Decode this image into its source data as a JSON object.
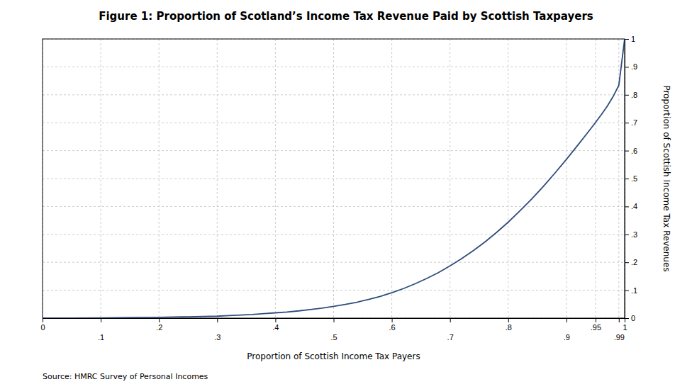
{
  "chart_data": {
    "type": "line",
    "title": "Figure 1: Proportion of Scotland’s Income Tax Revenue Paid by Scottish Taxpayers",
    "x_label": "Proportion of Scottish Income Tax Payers",
    "y_label": "Proportion of Scottish Income Tax Revenues",
    "source": "Source: HMRC Survey of Personal Incomes",
    "x": [
      0.0,
      0.05,
      0.1,
      0.15,
      0.2,
      0.25,
      0.3,
      0.32,
      0.34,
      0.36,
      0.38,
      0.4,
      0.42,
      0.44,
      0.46,
      0.48,
      0.5,
      0.52,
      0.54,
      0.56,
      0.58,
      0.6,
      0.62,
      0.64,
      0.66,
      0.68,
      0.7,
      0.72,
      0.74,
      0.76,
      0.78,
      0.8,
      0.82,
      0.84,
      0.86,
      0.88,
      0.9,
      0.92,
      0.94,
      0.95,
      0.96,
      0.97,
      0.98,
      0.99,
      1.0
    ],
    "values": [
      0.0,
      0.0005,
      0.001,
      0.002,
      0.003,
      0.005,
      0.007,
      0.009,
      0.011,
      0.013,
      0.016,
      0.019,
      0.022,
      0.026,
      0.031,
      0.036,
      0.042,
      0.049,
      0.057,
      0.067,
      0.078,
      0.091,
      0.106,
      0.123,
      0.142,
      0.163,
      0.187,
      0.213,
      0.242,
      0.273,
      0.307,
      0.344,
      0.384,
      0.426,
      0.471,
      0.519,
      0.569,
      0.621,
      0.674,
      0.701,
      0.729,
      0.759,
      0.793,
      0.834,
      1.0
    ],
    "color": "#2e4d7b",
    "xlim": [
      0,
      1.0
    ],
    "xticks": [
      0,
      {
        "value": 0.1,
        "label": ".1"
      },
      {
        "value": 0.2,
        "label": ".2"
      },
      {
        "value": 0.3,
        "label": ".3"
      },
      {
        "value": 0.4,
        "label": ".4"
      },
      {
        "value": 0.5,
        "label": ".5"
      },
      {
        "value": 0.6,
        "label": ".6"
      },
      {
        "value": 0.7,
        "label": ".7"
      },
      {
        "value": 0.8,
        "label": ".8"
      },
      {
        "value": 0.9,
        "label": ".9"
      },
      {
        "value": 0.95,
        "label": ".95"
      },
      {
        "value": 0.99,
        "label": ".99"
      },
      1
    ],
    "ylim": [
      0,
      1.0
    ],
    "yticks": [
      0,
      {
        "value": 0.1,
        "label": ".1"
      },
      {
        "value": 0.2,
        "label": ".2"
      },
      {
        "value": 0.3,
        "label": ".3"
      },
      {
        "value": 0.4,
        "label": ".4"
      },
      {
        "value": 0.5,
        "label": ".5"
      },
      {
        "value": 0.6,
        "label": ".6"
      },
      {
        "value": 0.7,
        "label": ".7"
      },
      {
        "value": 0.8,
        "label": ".8"
      },
      {
        "value": 0.9,
        "label": ".9"
      },
      1
    ],
    "grid": true
  }
}
